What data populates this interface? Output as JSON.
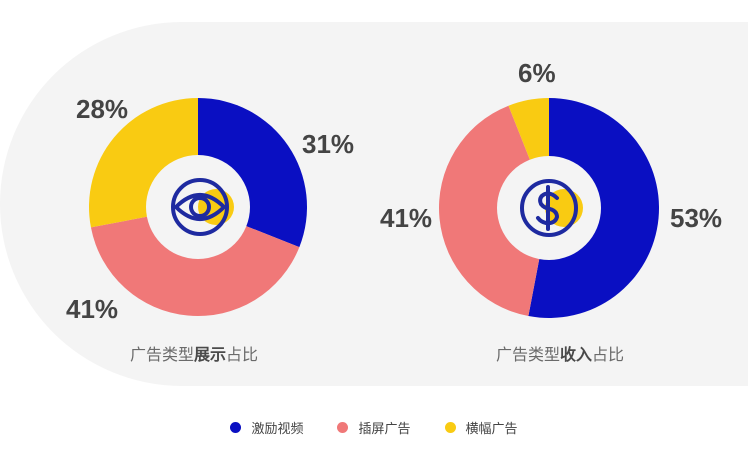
{
  "colors": {
    "video": "#0a0fc2",
    "interstitial": "#f07878",
    "banner": "#f9cb12",
    "center": "#f4f4f4",
    "icon_stroke": "#1e2aa0"
  },
  "legend": [
    {
      "label": "激励视频",
      "color": "#0a0fc2"
    },
    {
      "label": "插屏广告",
      "color": "#f07878"
    },
    {
      "label": "横幅广告",
      "color": "#f9cb12"
    }
  ],
  "chart_data": [
    {
      "type": "pie",
      "variant": "donut",
      "title_normal_prefix": "广告类型",
      "title_bold": "展示",
      "title_normal_suffix": "占比",
      "center_icon": "eye-icon",
      "slices": [
        {
          "name": "激励视频",
          "value": 31,
          "label": "31%"
        },
        {
          "name": "插屏广告",
          "value": 41,
          "label": "41%"
        },
        {
          "name": "横幅广告",
          "value": 28,
          "label": "28%"
        }
      ]
    },
    {
      "type": "pie",
      "variant": "donut",
      "title_normal_prefix": "广告类型",
      "title_bold": "收入",
      "title_normal_suffix": "占比",
      "center_icon": "dollar-icon",
      "slices": [
        {
          "name": "激励视频",
          "value": 53,
          "label": "53%"
        },
        {
          "name": "插屏广告",
          "value": 41,
          "label": "41%"
        },
        {
          "name": "横幅广告",
          "value": 6,
          "label": "6%"
        }
      ]
    }
  ]
}
